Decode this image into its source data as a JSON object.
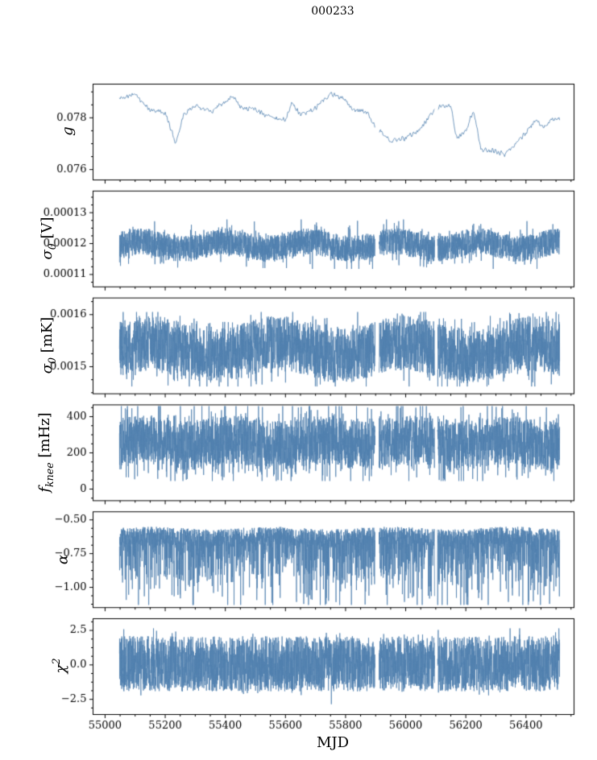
{
  "figure": {
    "title": "000233"
  },
  "chart_data": {
    "type": "line",
    "title": "000233",
    "xlabel": "MJD",
    "color": "#5080ae",
    "legend": "none",
    "grid": false,
    "x_range": [
      54960,
      56560
    ],
    "x_ticks": [
      55000,
      55200,
      55400,
      55600,
      55800,
      56000,
      56200,
      56400
    ],
    "x_tick_labels": [
      "55000",
      "55200",
      "55400",
      "55600",
      "55800",
      "56000",
      "56200",
      "56400"
    ],
    "x_minor_step": 50,
    "data_start": 55048,
    "data_end": 56512,
    "gaps": [
      [
        55898,
        55911
      ],
      [
        56096,
        56106
      ]
    ],
    "panels": [
      {
        "ylabel_main": "g",
        "ylabel_text": "g",
        "ylim": [
          0.0756,
          0.0793
        ],
        "yticks": [
          0.076,
          0.078
        ],
        "ytick_labels": [
          "0.076",
          "0.078"
        ],
        "signal": {
          "kind": "smooth",
          "noise": 0.00012,
          "seed": 7,
          "control_x": [
            55048,
            55100,
            55150,
            55200,
            55235,
            55260,
            55300,
            55350,
            55400,
            55425,
            55450,
            55500,
            55550,
            55600,
            55620,
            55650,
            55700,
            55750,
            55790,
            55830,
            55870,
            55905,
            55950,
            56000,
            56050,
            56100,
            56150,
            56170,
            56200,
            56225,
            56250,
            56300,
            56330,
            56360,
            56400,
            56430,
            56460,
            56490,
            56512
          ],
          "control_y": [
            0.0788,
            0.0789,
            0.0783,
            0.0782,
            0.077,
            0.0781,
            0.0785,
            0.0782,
            0.0786,
            0.0789,
            0.0784,
            0.0783,
            0.078,
            0.0779,
            0.0786,
            0.0781,
            0.0784,
            0.0789,
            0.0788,
            0.0783,
            0.0782,
            0.0776,
            0.0771,
            0.0772,
            0.0776,
            0.0784,
            0.0785,
            0.0772,
            0.0775,
            0.0783,
            0.0768,
            0.0767,
            0.0766,
            0.0769,
            0.0774,
            0.0779,
            0.0777,
            0.078,
            0.0779
          ]
        }
      },
      {
        "ylabel_main": "σ",
        "ylabel_sub": "0",
        "ylabel_unit": " [V]",
        "ylabel_text": "σ0 [V]",
        "ylim": [
          0.000106,
          0.000137
        ],
        "yticks": [
          0.00011,
          0.00012,
          0.00013
        ],
        "ytick_labels": [
          "0.00011",
          "0.00012",
          "0.00013"
        ],
        "signal": {
          "kind": "band",
          "seed": 11,
          "center": 0.0001195,
          "uniform": 8.5e-06,
          "tail_p": 0.18,
          "tail_amp": 2.2e-06,
          "tail_dir": 0,
          "wobble_amp": 1.2e-06,
          "wobble_period": 280,
          "clip": [
            0.0001118,
            0.0001278
          ]
        }
      },
      {
        "ylabel_main": "σ",
        "ylabel_sub": "0",
        "ylabel_unit": " [mK]",
        "ylabel_text": "σ0 [mK]",
        "ylim": [
          0.001448,
          0.001632
        ],
        "yticks": [
          0.0015,
          0.0016
        ],
        "ytick_labels": [
          "0.0015",
          "0.0016"
        ],
        "signal": {
          "kind": "band",
          "seed": 22,
          "center": 0.001533,
          "uniform": 0.000105,
          "tail_p": 0.25,
          "tail_amp": 1.8e-05,
          "tail_dir": 0,
          "wobble_amp": 1.2e-05,
          "wobble_period": 420,
          "clip": [
            0.001462,
            0.001605
          ]
        }
      },
      {
        "ylabel_main": "f",
        "ylabel_sub": "knee",
        "ylabel_unit": " [mHz]",
        "ylabel_text": "f_knee [mHz]",
        "ylim": [
          -64,
          465
        ],
        "yticks": [
          0,
          200,
          400
        ],
        "ytick_labels": [
          "0",
          "200",
          "400"
        ],
        "signal": {
          "kind": "band",
          "seed": 33,
          "center": 255,
          "uniform": 270,
          "tail_p": 0.35,
          "tail_amp": 70,
          "tail_dir": 0,
          "wobble_amp": 15,
          "wobble_period": 300,
          "clip": [
            45,
            458
          ]
        }
      },
      {
        "ylabel_main": "α",
        "ylabel_text": "α",
        "ylim": [
          -1.15,
          -0.44
        ],
        "yticks": [
          -0.5,
          -0.75,
          -1.0
        ],
        "ytick_labels": [
          "−0.50",
          "−0.75",
          "−1.00"
        ],
        "signal": {
          "kind": "band",
          "seed": 44,
          "center": -0.625,
          "uniform": 0.13,
          "tail_p": 0.42,
          "tail_amp": 0.21,
          "tail_dir": -1,
          "wobble_amp": 0.01,
          "wobble_period": 400,
          "clip": [
            -1.13,
            -0.552
          ]
        }
      },
      {
        "ylabel_main": "χ",
        "ylabel_sup": "2",
        "ylabel_text": "χ2",
        "ylim": [
          -3.6,
          3.35
        ],
        "yticks": [
          -2.5,
          0.0,
          2.5
        ],
        "ytick_labels": [
          "−2.5",
          "0.0",
          "2.5"
        ],
        "signal": {
          "kind": "band",
          "seed": 55,
          "center": 0.08,
          "uniform": 4.0,
          "tail_p": 0.15,
          "tail_amp": 0.45,
          "tail_dir": 0,
          "wobble_amp": 0,
          "wobble_period": 1,
          "clip": [
            -3.15,
            2.65
          ]
        }
      }
    ]
  }
}
